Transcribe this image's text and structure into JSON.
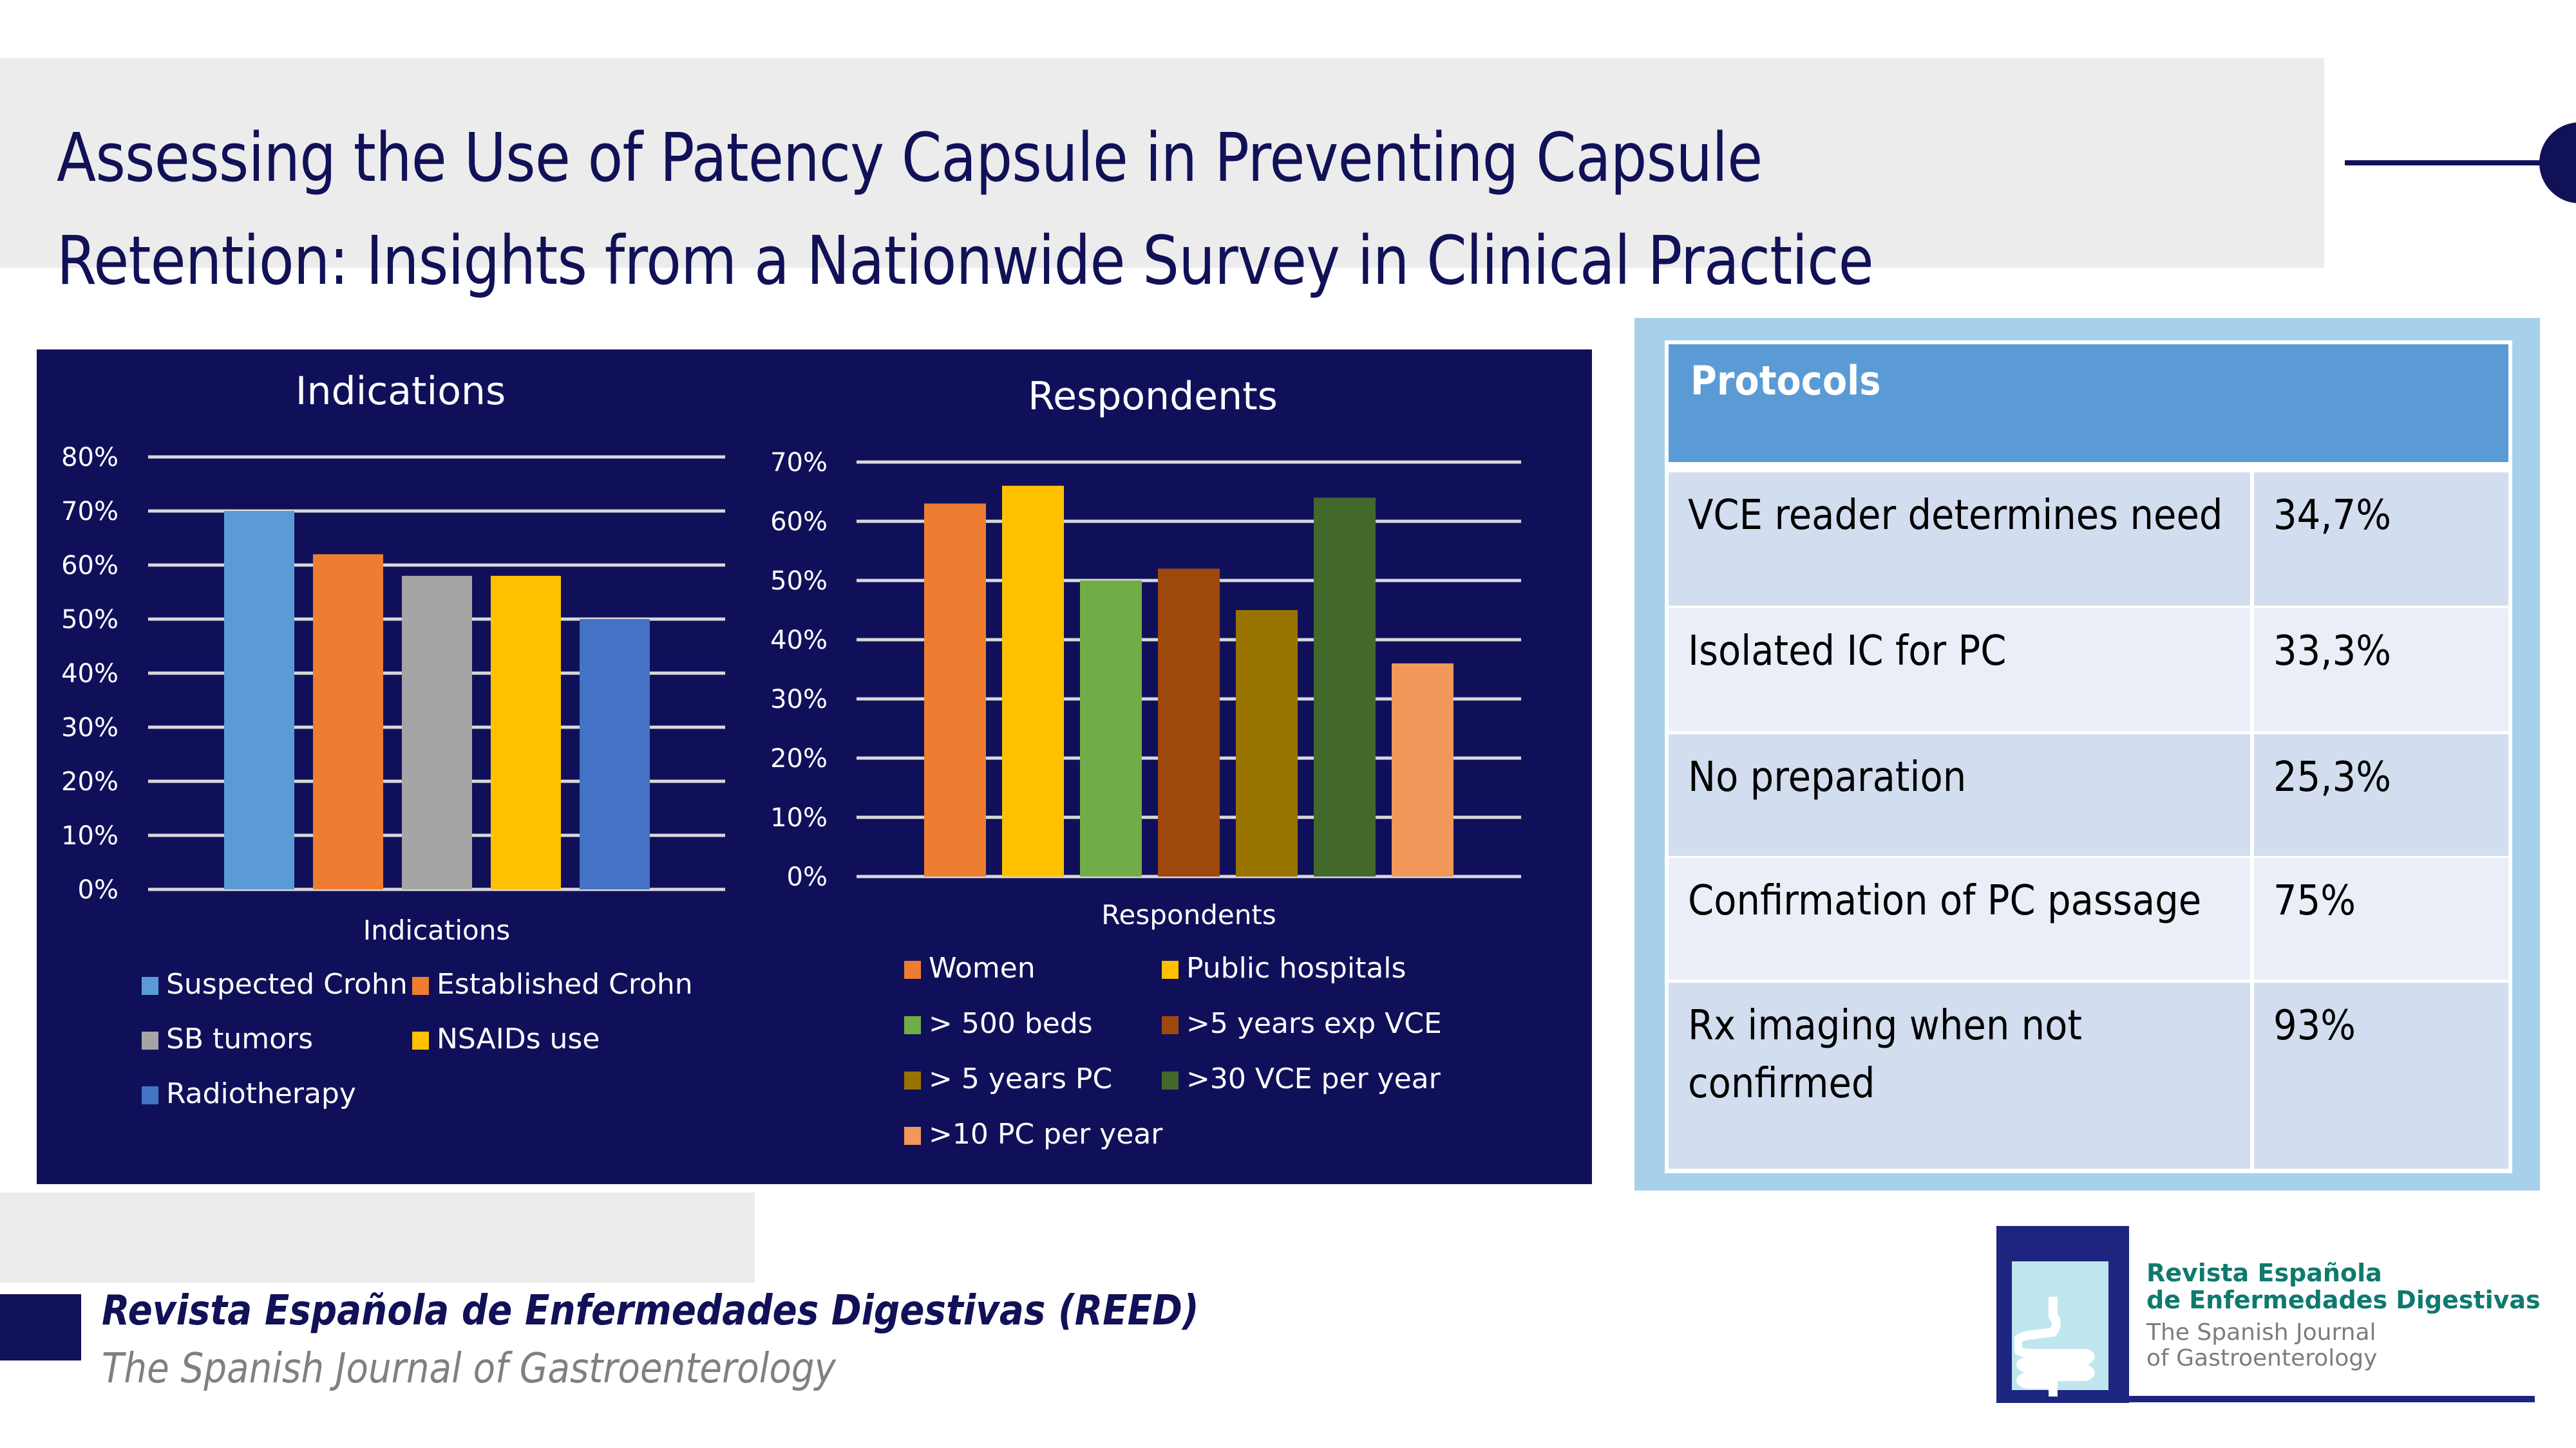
{
  "slide": {
    "title_lines": [
      "Assessing the Use of Patency Capsule in Preventing Capsule",
      "Retention: Insights from a Nationwide Survey in Clinical Practice"
    ],
    "colors": {
      "navy": "#101157",
      "chart_bg": "#10105a",
      "protocol_panel": "#a7d1eb",
      "protocol_header": "#5b9bd5"
    }
  },
  "chart_data": [
    {
      "type": "bar",
      "title": "Indications",
      "xlabel": "Indications",
      "ylabel": "",
      "ylim": [
        0,
        80
      ],
      "yticks": [
        "0%",
        "10%",
        "20%",
        "30%",
        "40%",
        "50%",
        "60%",
        "70%",
        "80%"
      ],
      "grid": true,
      "legend": "bottom",
      "categories": [
        "Suspected Crohn",
        "Established Crohn",
        "SB tumors",
        "NSAIDs use",
        "Radiotherapy"
      ],
      "values": [
        70,
        62,
        58,
        58,
        50
      ],
      "colors": [
        "#5b9bd5",
        "#ed7d31",
        "#a5a5a5",
        "#ffc000",
        "#4472c4"
      ]
    },
    {
      "type": "bar",
      "title": "Respondents",
      "xlabel": "Respondents",
      "ylabel": "",
      "ylim": [
        0,
        70
      ],
      "yticks": [
        "0%",
        "10%",
        "20%",
        "30%",
        "40%",
        "50%",
        "60%",
        "70%"
      ],
      "grid": true,
      "legend": "bottom",
      "categories": [
        "Women",
        "Public hospitals",
        "> 500 beds",
        ">5 years exp VCE",
        "> 5 years PC",
        ">30 VCE per year",
        ">10 PC per year"
      ],
      "values": [
        63,
        66,
        50,
        52,
        45,
        64,
        36
      ],
      "colors": [
        "#ed7d31",
        "#ffc000",
        "#70ad47",
        "#9e480e",
        "#997300",
        "#43682b",
        "#f1975a"
      ]
    }
  ],
  "protocols": {
    "header": "Protocols",
    "rows": [
      {
        "label": "VCE reader determines need",
        "value": "34,7%"
      },
      {
        "label": "Isolated IC for PC",
        "value": "33,3%"
      },
      {
        "label": "No preparation",
        "value": "25,3%"
      },
      {
        "label": "Confirmation of PC passage",
        "value": "75%"
      },
      {
        "label": "Rx imaging when not confirmed",
        "value": "93%"
      }
    ]
  },
  "footer": {
    "journal": "Revista Española de Enfermedades Digestivas (REED)",
    "subtitle": "The Spanish Journal of Gastroenterology"
  },
  "logo": {
    "line1": "Revista Española",
    "line2": "de Enfermedades Digestivas",
    "line3": "The Spanish Journal",
    "line4": "of Gastroenterology"
  }
}
